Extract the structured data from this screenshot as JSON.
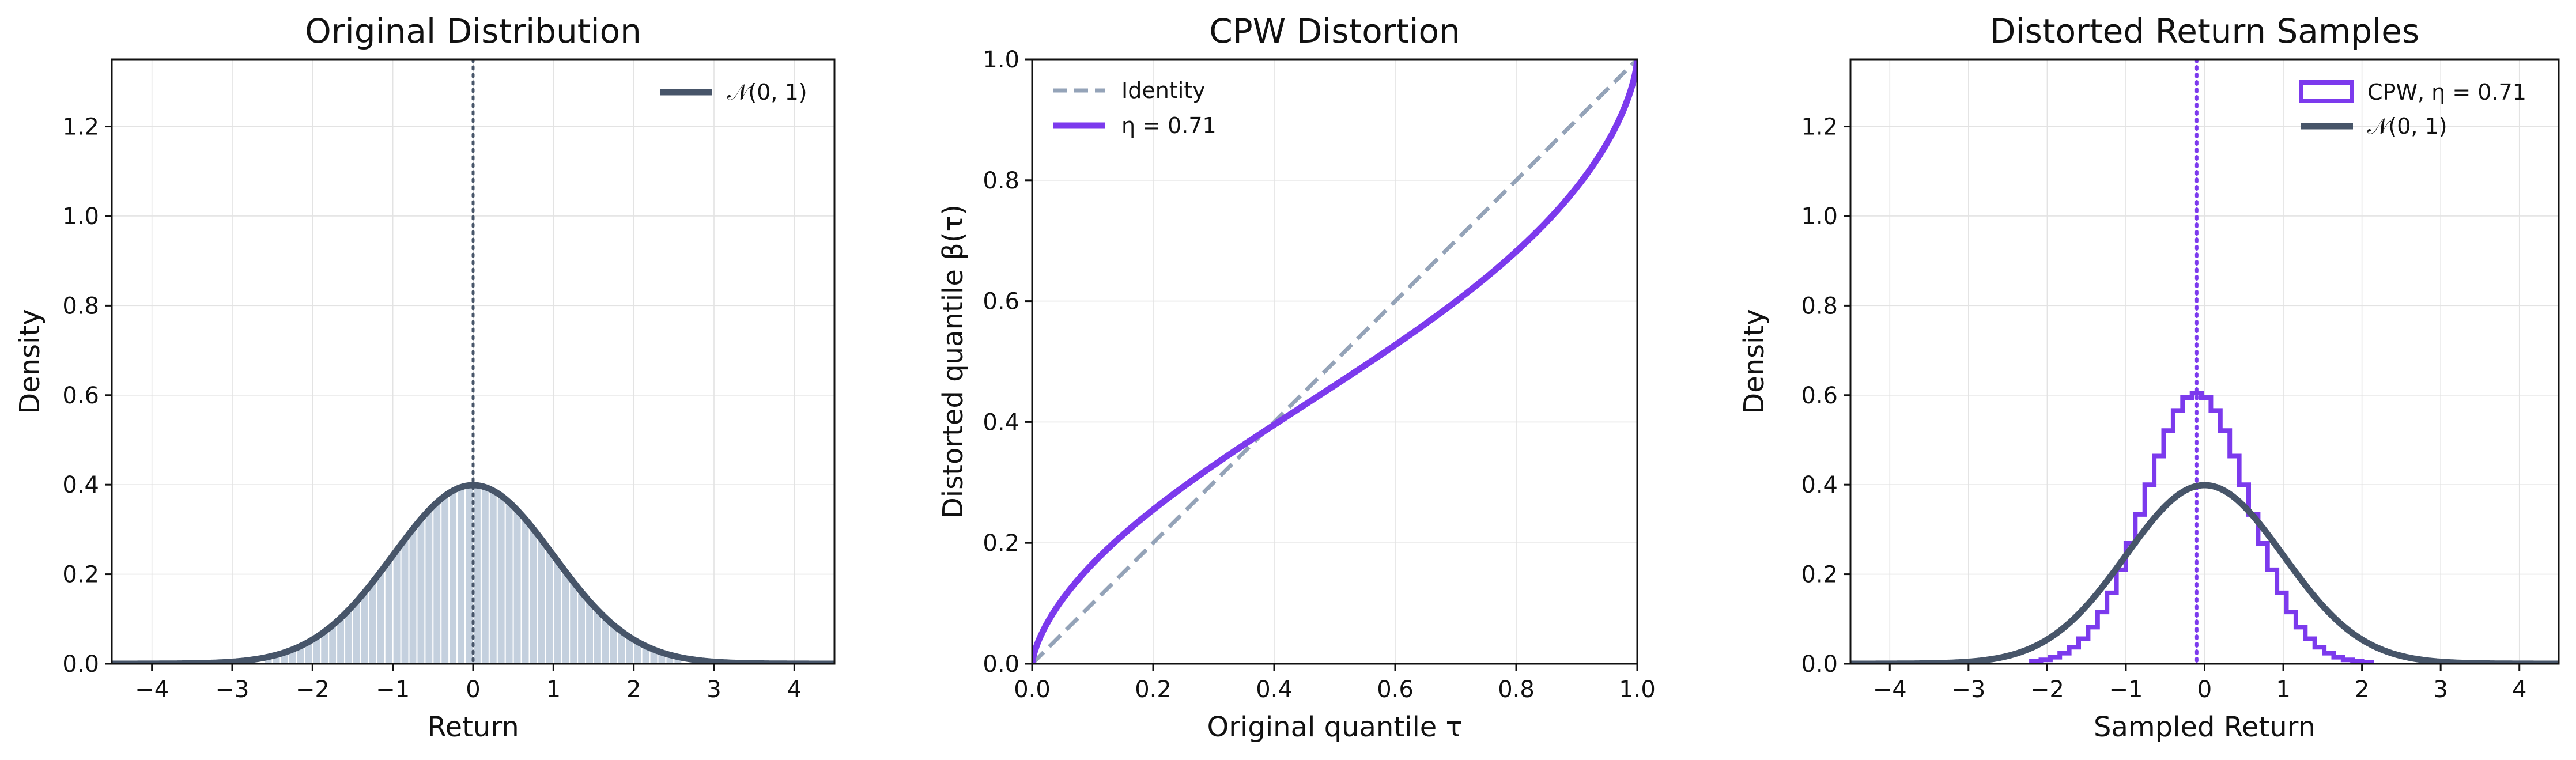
{
  "colors": {
    "normal_line": "#475569",
    "hist_fill": "#c4d0de",
    "hist_edge": "#ffffff",
    "cpw": "#7c3aed",
    "identity": "#94a3b8",
    "mean_line_left": "#475569",
    "mean_line_right": "#7c3aed",
    "grid": "#e3e3e3"
  },
  "chart_data": [
    {
      "type": "line",
      "title": "Original Distribution",
      "xlabel": "Return",
      "ylabel": "Density",
      "xlim": [
        -4.5,
        4.5
      ],
      "ylim": [
        0,
        1.35
      ],
      "xticks": [
        "−4",
        "−3",
        "−2",
        "−1",
        "0",
        "1",
        "2",
        "3",
        "4"
      ],
      "yticks": [
        "0.0",
        "0.2",
        "0.4",
        "0.6",
        "0.8",
        "1.0",
        "1.2"
      ],
      "grid": true,
      "legend": {
        "placement": "top-right",
        "entries": [
          "𝒩(0, 1)"
        ]
      },
      "series": [
        {
          "name": "𝒩(0, 1)",
          "kind": "density",
          "mean": 0,
          "std": 1
        },
        {
          "kind": "histogram",
          "bin_width": 0.1,
          "range": [
            -2.6,
            2.6
          ],
          "distribution": "standard normal"
        }
      ],
      "vline": 0
    },
    {
      "type": "line",
      "title": "CPW Distortion",
      "xlabel": "Original quantile τ",
      "ylabel": "Distorted quantile β(τ)",
      "xlim": [
        0,
        1
      ],
      "ylim": [
        0,
        1
      ],
      "xticks": [
        "0.0",
        "0.2",
        "0.4",
        "0.6",
        "0.8",
        "1.0"
      ],
      "yticks": [
        "0.0",
        "0.2",
        "0.4",
        "0.6",
        "0.8",
        "1.0"
      ],
      "grid": true,
      "legend": {
        "placement": "top-left",
        "entries": [
          "Identity",
          "η = 0.71"
        ]
      },
      "series": [
        {
          "name": "Identity",
          "style": "dashed",
          "x": [
            0,
            1
          ],
          "y": [
            0,
            1
          ]
        },
        {
          "name": "η = 0.71",
          "style": "solid",
          "eta": 0.71,
          "formula": "τ^η / (τ^η + (1−τ)^η)^(1/η)",
          "x": [
            0.0,
            0.1,
            0.2,
            0.3,
            0.4,
            0.5,
            0.6,
            0.7,
            0.8,
            0.9,
            1.0
          ],
          "y": [
            0.0,
            0.17,
            0.27,
            0.34,
            0.4,
            0.46,
            0.52,
            0.59,
            0.67,
            0.78,
            1.0
          ]
        }
      ]
    },
    {
      "type": "bar",
      "title": "Distorted Return Samples",
      "xlabel": "Sampled Return",
      "ylabel": "Density",
      "xlim": [
        -4.5,
        4.5
      ],
      "ylim": [
        0,
        1.35
      ],
      "xticks": [
        "−4",
        "−3",
        "−2",
        "−1",
        "0",
        "1",
        "2",
        "3",
        "4"
      ],
      "yticks": [
        "0.0",
        "0.2",
        "0.4",
        "0.6",
        "0.8",
        "1.0",
        "1.2"
      ],
      "grid": true,
      "legend": {
        "placement": "top-right",
        "entries": [
          "CPW, η = 0.71",
          "𝒩(0, 1)"
        ]
      },
      "series": [
        {
          "name": "CPW, η = 0.71",
          "kind": "step-histogram",
          "bin_width": 0.12,
          "range": [
            -2.2,
            2.2
          ],
          "mean": -0.1,
          "std": 0.66
        },
        {
          "name": "𝒩(0, 1)",
          "kind": "density",
          "mean": 0,
          "std": 1
        }
      ],
      "vline": -0.1
    }
  ]
}
